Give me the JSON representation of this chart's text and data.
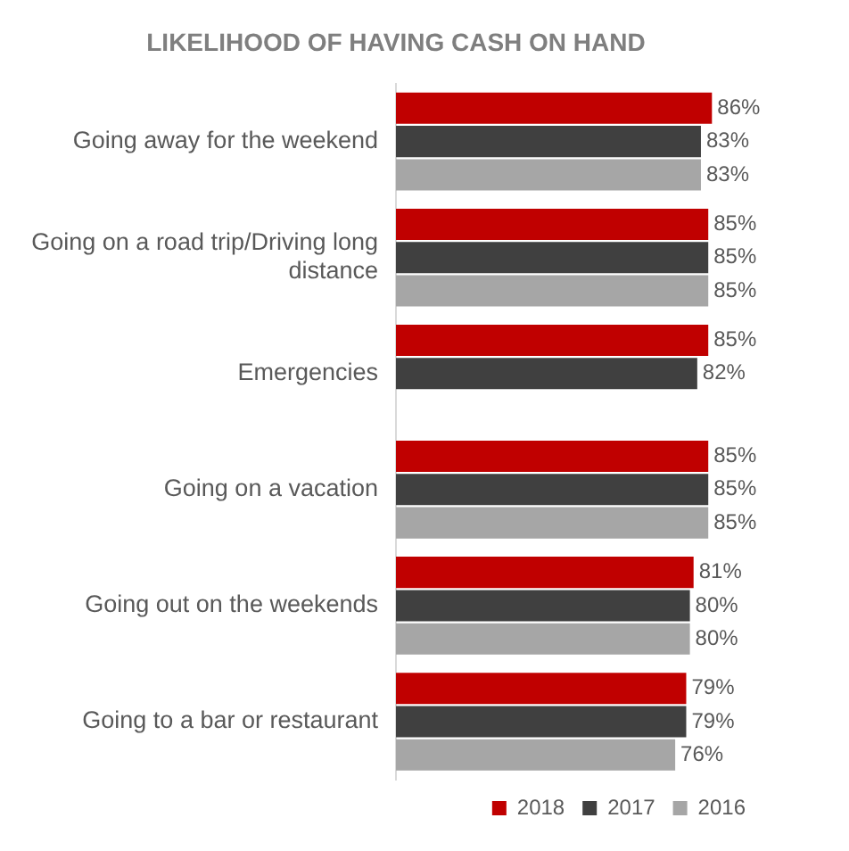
{
  "chart_data": {
    "type": "bar",
    "orientation": "horizontal",
    "title": "LIKELIHOOD OF HAVING CASH ON HAND",
    "categories": [
      "Going away for the weekend",
      "Going on a road trip/Driving long distance",
      "Emergencies",
      "Going on a vacation",
      "Going out on the weekends",
      "Going to a bar or restaurant"
    ],
    "series": [
      {
        "name": "2018",
        "color": "#c00000",
        "values": [
          86,
          85,
          85,
          85,
          81,
          79
        ],
        "value_labels": [
          "86%",
          "85%",
          "85%",
          "85%",
          "81%",
          "79%"
        ]
      },
      {
        "name": "2017",
        "color": "#404040",
        "values": [
          83,
          85,
          82,
          85,
          80,
          79
        ],
        "value_labels": [
          "83%",
          "85%",
          "82%",
          "85%",
          "80%",
          "79%"
        ]
      },
      {
        "name": "2016",
        "color": "#a6a6a6",
        "values": [
          83,
          85,
          null,
          85,
          80,
          76
        ],
        "value_labels": [
          "83%",
          "85%",
          null,
          "85%",
          "80%",
          "76%"
        ]
      }
    ],
    "tick_labels": "y",
    "grid": false,
    "legend": "bottom"
  }
}
